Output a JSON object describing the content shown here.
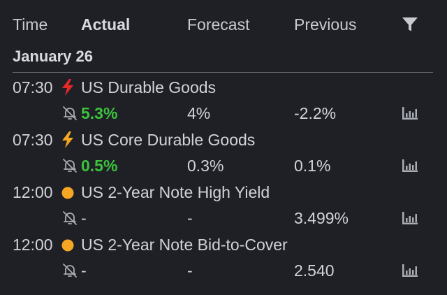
{
  "header": {
    "time_label": "Time",
    "actual_label": "Actual",
    "forecast_label": "Forecast",
    "previous_label": "Previous",
    "filter_icon": "filter-icon"
  },
  "date_label": "January 26",
  "colors": {
    "background": "#1e2026",
    "positive": "#3cc23c",
    "high_impact": "#e8272a",
    "medium_impact": "#f5a623",
    "low_impact": "#f5a623"
  },
  "events": [
    {
      "time": "07:30",
      "impact": "high",
      "impact_icon": "lightning-icon",
      "name": "US Durable Goods",
      "actual": "5.3%",
      "actual_positive": true,
      "forecast": "4%",
      "previous": "-2.2%"
    },
    {
      "time": "07:30",
      "impact": "medium",
      "impact_icon": "lightning-icon",
      "name": "US Core Durable Goods",
      "actual": "0.5%",
      "actual_positive": true,
      "forecast": "0.3%",
      "previous": "0.1%"
    },
    {
      "time": "12:00",
      "impact": "low",
      "impact_icon": "circle-icon",
      "name": "US 2-Year Note High Yield",
      "actual": "-",
      "actual_positive": false,
      "forecast": "-",
      "previous": "3.499%"
    },
    {
      "time": "12:00",
      "impact": "low",
      "impact_icon": "circle-icon",
      "name": "US 2-Year Note Bid-to-Cover",
      "actual": "-",
      "actual_positive": false,
      "forecast": "-",
      "previous": "2.540"
    }
  ]
}
